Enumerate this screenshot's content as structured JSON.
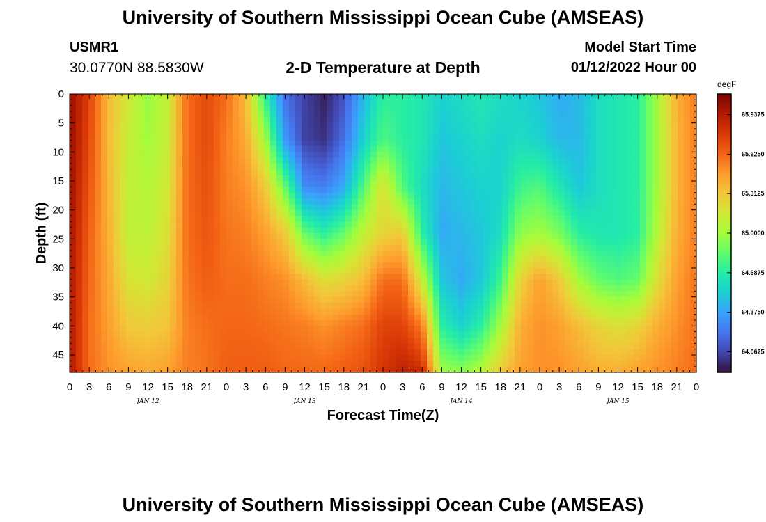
{
  "header": {
    "title": "University of Southern Mississippi Ocean Cube (AMSEAS)",
    "station_id": "USMR1",
    "station_coords": "30.0770N  88.5830W",
    "plot_title": "2-D Temperature at Depth",
    "model_start_label": "Model Start Time",
    "model_start_time": "01/12/2022 Hour 00"
  },
  "footer": {
    "title": "University of Southern Mississippi Ocean Cube (AMSEAS)"
  },
  "chart_data": {
    "type": "heatmap",
    "title": "2-D Temperature at Depth",
    "xlabel": "Forecast Time(Z)",
    "ylabel": "Depth (ft)",
    "x_range_hours": [
      0,
      96
    ],
    "y_range_ft": [
      0,
      48
    ],
    "x_ticks": [
      "0",
      "3",
      "6",
      "9",
      "12",
      "15",
      "18",
      "21",
      "0",
      "3",
      "6",
      "9",
      "12",
      "15",
      "18",
      "21",
      "0",
      "3",
      "6",
      "9",
      "12",
      "15",
      "18",
      "21",
      "0",
      "3",
      "6",
      "9",
      "12",
      "15",
      "18",
      "21",
      "0"
    ],
    "y_ticks": [
      "0",
      "5",
      "10",
      "15",
      "20",
      "25",
      "30",
      "35",
      "40",
      "45"
    ],
    "day_labels": [
      "JAN 12",
      "JAN 13",
      "JAN 14",
      "JAN 15"
    ],
    "colorbar": {
      "unit": "degF",
      "labels": [
        "65.9375",
        "65.6250",
        "65.3125",
        "65.0000",
        "64.6875",
        "64.3750",
        "64.0625"
      ],
      "min": 63.9,
      "max": 66.1,
      "colors": [
        "#30123b",
        "#4145ab",
        "#4675ed",
        "#39a2fc",
        "#1bcfd4",
        "#24eca6",
        "#61fc6c",
        "#a4fc3b",
        "#d1e834",
        "#f3c63a",
        "#fe9b2d",
        "#f36315",
        "#d93806",
        "#b11901",
        "#7a0402"
      ]
    },
    "temperature_grid": {
      "times_hours": [
        0,
        3,
        6,
        9,
        12,
        15,
        18,
        21,
        24,
        27,
        30,
        33,
        36,
        39,
        42,
        45,
        48,
        51,
        54,
        57,
        60,
        63,
        66,
        69,
        72,
        75,
        78,
        81,
        84,
        87,
        90,
        93,
        96
      ],
      "depths_ft": [
        0,
        8,
        16,
        24,
        32,
        40,
        48
      ],
      "values_degF": [
        [
          66.02,
          66.02,
          66.0,
          65.98,
          65.96,
          65.95,
          65.95
        ],
        [
          65.75,
          65.72,
          65.68,
          65.64,
          65.62,
          65.6,
          65.6
        ],
        [
          65.35,
          65.35,
          65.37,
          65.39,
          65.42,
          65.45,
          65.5
        ],
        [
          65.15,
          65.12,
          65.1,
          65.1,
          65.18,
          65.3,
          65.45
        ],
        [
          64.97,
          65.0,
          65.05,
          65.08,
          65.15,
          65.28,
          65.42
        ],
        [
          65.1,
          65.12,
          65.15,
          65.2,
          65.25,
          65.32,
          65.45
        ],
        [
          65.6,
          65.6,
          65.6,
          65.6,
          65.58,
          65.55,
          65.55
        ],
        [
          65.72,
          65.72,
          65.7,
          65.68,
          65.65,
          65.6,
          65.58
        ],
        [
          65.6,
          65.55,
          65.55,
          65.58,
          65.6,
          65.62,
          65.65
        ],
        [
          65.35,
          65.42,
          65.5,
          65.55,
          65.6,
          65.62,
          65.65
        ],
        [
          64.7,
          65.0,
          65.3,
          65.45,
          65.55,
          65.6,
          65.65
        ],
        [
          64.2,
          64.35,
          64.85,
          65.3,
          65.5,
          65.58,
          65.62
        ],
        [
          64.05,
          64.05,
          64.3,
          64.85,
          65.35,
          65.55,
          65.62
        ],
        [
          63.95,
          64.0,
          64.25,
          64.7,
          65.2,
          65.5,
          65.62
        ],
        [
          64.1,
          64.2,
          64.4,
          64.85,
          65.25,
          65.55,
          65.65
        ],
        [
          64.45,
          64.55,
          64.8,
          65.1,
          65.35,
          65.6,
          65.7
        ],
        [
          64.7,
          64.8,
          65.2,
          65.25,
          65.6,
          65.75,
          65.8
        ],
        [
          64.7,
          64.7,
          64.8,
          65.3,
          65.6,
          65.75,
          65.9
        ],
        [
          64.65,
          64.65,
          64.6,
          64.7,
          65.1,
          65.55,
          65.85
        ],
        [
          64.55,
          64.5,
          64.45,
          64.4,
          64.5,
          64.7,
          65.0
        ],
        [
          64.6,
          64.55,
          64.5,
          64.45,
          64.4,
          64.55,
          64.95
        ],
        [
          64.65,
          64.6,
          64.55,
          64.5,
          64.5,
          64.7,
          65.05
        ],
        [
          64.6,
          64.55,
          64.55,
          64.6,
          64.75,
          65.0,
          65.3
        ],
        [
          64.55,
          64.6,
          64.75,
          64.95,
          65.25,
          65.4,
          65.45
        ],
        [
          64.5,
          64.55,
          64.8,
          65.0,
          65.45,
          65.5,
          65.5
        ],
        [
          64.4,
          64.45,
          64.65,
          64.9,
          65.3,
          65.45,
          65.5
        ],
        [
          64.45,
          64.45,
          64.5,
          64.7,
          65.0,
          65.35,
          65.45
        ],
        [
          64.6,
          64.6,
          64.6,
          64.65,
          64.85,
          65.25,
          65.4
        ],
        [
          64.65,
          64.65,
          64.65,
          64.65,
          64.8,
          65.2,
          65.4
        ],
        [
          64.7,
          64.7,
          64.7,
          64.7,
          64.85,
          65.25,
          65.45
        ],
        [
          65.0,
          65.0,
          65.0,
          65.05,
          65.2,
          65.4,
          65.5
        ],
        [
          65.4,
          65.38,
          65.38,
          65.4,
          65.45,
          65.5,
          65.55
        ],
        [
          65.55,
          65.55,
          65.55,
          65.55,
          65.58,
          65.6,
          65.6
        ]
      ]
    }
  }
}
